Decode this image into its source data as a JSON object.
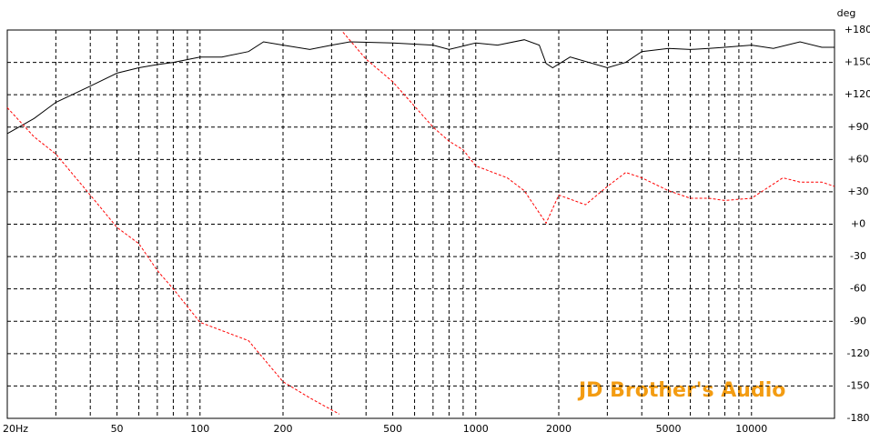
{
  "chart_data": {
    "type": "line",
    "y_unit": "deg",
    "watermark": "JD Brother's Audio",
    "log_x": true,
    "grid": true,
    "xlim": [
      20,
      20000
    ],
    "ylim": [
      -180,
      180
    ],
    "xticks": [
      {
        "value": 20,
        "label": "20Hz"
      },
      50,
      100,
      200,
      500,
      1000,
      2000,
      5000,
      10000
    ],
    "xgrid": [
      30,
      40,
      50,
      60,
      70,
      80,
      90,
      100,
      200,
      300,
      400,
      500,
      600,
      700,
      800,
      900,
      1000,
      2000,
      3000,
      4000,
      5000,
      6000,
      7000,
      8000,
      9000,
      10000
    ],
    "yticks": [
      {
        "value": 180,
        "label": "+180"
      },
      {
        "value": 150,
        "label": "+150"
      },
      {
        "value": 120,
        "label": "+120"
      },
      {
        "value": 90,
        "label": "+90"
      },
      {
        "value": 60,
        "label": "+60"
      },
      {
        "value": 30,
        "label": "+30"
      },
      {
        "value": 0,
        "label": "+0"
      },
      -30,
      -60,
      -90,
      -120,
      -150,
      -180
    ],
    "series": [
      {
        "color": "#000000",
        "dashed": false,
        "x": [
          20,
          25,
          30,
          40,
          50,
          60,
          70,
          80,
          100,
          120,
          150,
          170,
          200,
          250,
          300,
          350,
          500,
          700,
          800,
          1000,
          1200,
          1500,
          1700,
          1800,
          1900,
          2200,
          3000,
          3500,
          4000,
          5000,
          6000,
          7000,
          8000,
          10000,
          12000,
          15000,
          18000,
          20000
        ],
        "values": [
          84,
          98,
          113,
          128,
          140,
          145,
          148,
          150,
          155,
          155,
          160,
          169,
          166,
          162,
          166,
          169,
          168,
          166,
          162,
          168,
          166,
          171,
          166,
          149,
          145,
          155,
          145,
          150,
          160,
          163,
          162,
          163,
          164,
          166,
          163,
          169,
          164,
          164
        ]
      },
      {
        "color": "#ff0000",
        "dashed": true,
        "x": [
          20,
          25,
          30,
          40,
          50,
          60,
          70,
          80,
          100,
          150,
          200,
          250,
          320,
          325,
          330,
          400,
          500,
          700,
          800,
          900,
          1000,
          1300,
          1500,
          1800,
          2000,
          2500,
          3000,
          3500,
          4000,
          5000,
          6000,
          7000,
          8000,
          10000,
          13000,
          15000,
          18000,
          20000
        ],
        "values": [
          108,
          81,
          65,
          27,
          -3,
          -18,
          -43,
          -60,
          -91,
          -108,
          -146,
          -161,
          -176,
          null,
          178,
          153,
          132,
          90,
          77,
          69,
          54,
          43,
          31,
          1,
          27,
          18,
          35,
          48,
          43,
          31,
          24,
          24,
          22,
          24,
          43,
          39,
          39,
          35
        ]
      }
    ]
  }
}
